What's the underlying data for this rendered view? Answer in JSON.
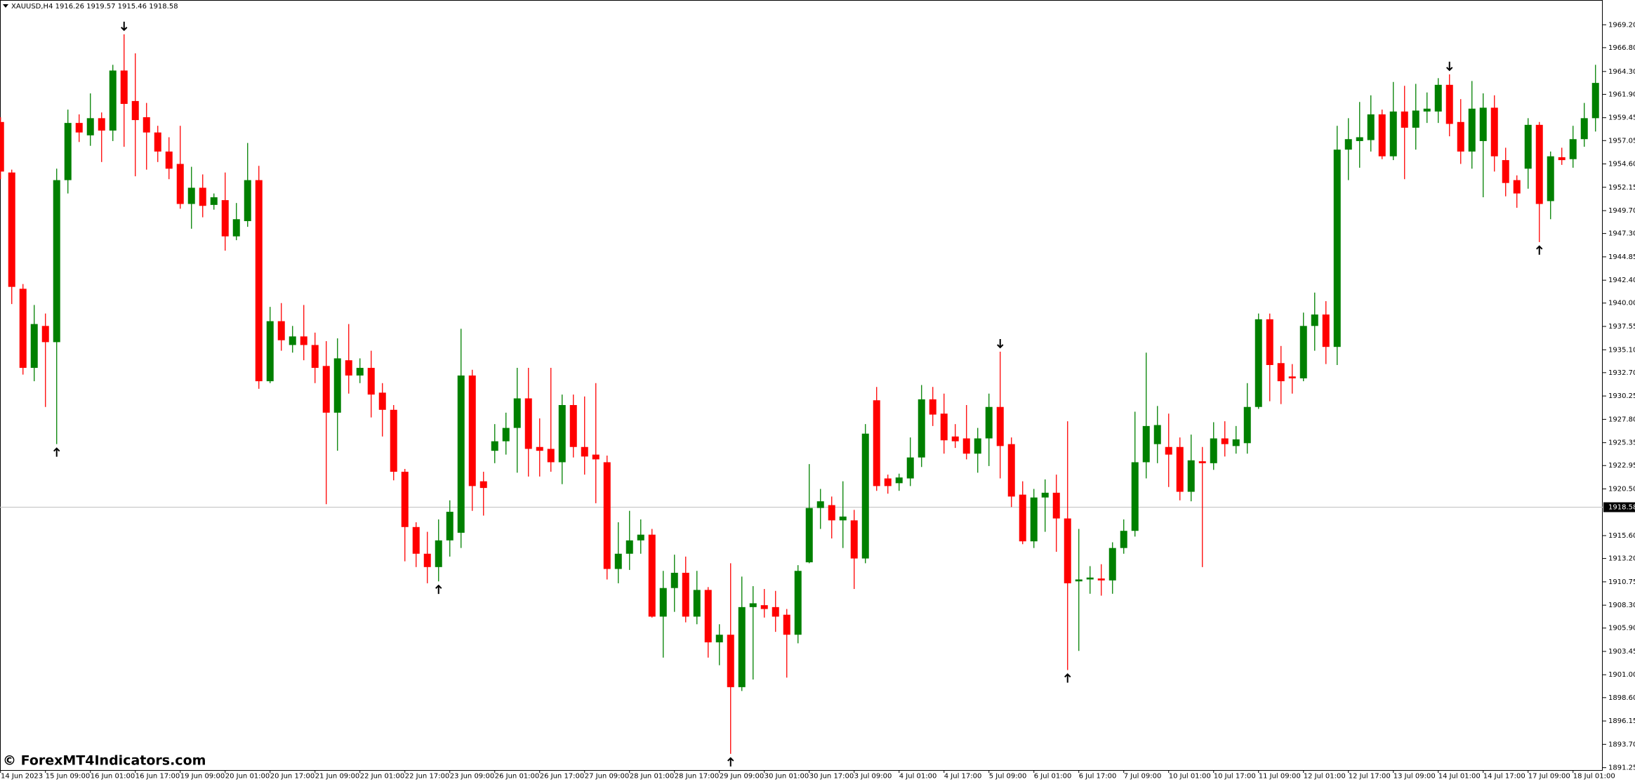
{
  "chart_data": {
    "type": "candlestick",
    "title": "XAUUSD,H4  1916.26 1919.57 1915.46 1918.58",
    "watermark": "© ForexMT4Indicators.com",
    "up_color": "#008000",
    "down_color": "#ff0000",
    "grid": false,
    "ylim": [
      1891.0,
      1971.8
    ],
    "yticks": [
      {
        "value": 1969.2,
        "label": "1969.20"
      },
      {
        "value": 1966.8,
        "label": "1966.80"
      },
      {
        "value": 1964.3,
        "label": "1964.30"
      },
      {
        "value": 1961.9,
        "label": "1961.90"
      },
      1959.45,
      1957.05,
      {
        "value": 1954.6,
        "label": "1954.60"
      },
      1952.15,
      {
        "value": 1949.7,
        "label": "1949.70"
      },
      {
        "value": 1947.3,
        "label": "1947.30"
      },
      1944.85,
      {
        "value": 1942.4,
        "label": "1942.40"
      },
      {
        "value": 1940,
        "label": "1940.00"
      },
      1937.55,
      {
        "value": 1935.1,
        "label": "1935.10"
      },
      {
        "value": 1932.7,
        "label": "1932.70"
      },
      1930.25,
      {
        "value": 1927.8,
        "label": "1927.80"
      },
      1925.35,
      1922.95,
      {
        "value": 1920.5,
        "label": "1920.50"
      },
      {
        "value": 1915.6,
        "label": "1915.60"
      },
      {
        "value": 1913.2,
        "label": "1913.20"
      },
      1910.75,
      {
        "value": 1908.3,
        "label": "1908.30"
      },
      {
        "value": 1905.9,
        "label": "1905.90"
      },
      1903.45,
      {
        "value": 1901,
        "label": "1901.00"
      },
      {
        "value": 1898.6,
        "label": "1898.60"
      },
      1896.15,
      {
        "value": 1893.7,
        "label": "1893.70"
      },
      1891.25
    ],
    "current_price": 1918.58,
    "time_labels": [
      "14 Jun 2023",
      "15 Jun 09:00",
      "16 Jun 01:00",
      "16 Jun 17:00",
      "19 Jun 09:00",
      "20 Jun 01:00",
      "20 Jun 17:00",
      "21 Jun 09:00",
      "22 Jun 01:00",
      "22 Jun 17:00",
      "23 Jun 09:00",
      "26 Jun 01:00",
      "26 Jun 17:00",
      "27 Jun 09:00",
      "28 Jun 01:00",
      "28 Jun 17:00",
      "29 Jun 09:00",
      "30 Jun 01:00",
      "30 Jun 17:00",
      "3 Jul 09:00",
      "4 Jul 01:00",
      "4 Jul 17:00",
      "5 Jul 09:00",
      "6 Jul 01:00",
      "6 Jul 17:00",
      "7 Jul 09:00",
      "10 Jul 01:00",
      "10 Jul 17:00",
      "11 Jul 09:00",
      "12 Jul 01:00",
      "12 Jul 17:00",
      "13 Jul 09:00",
      "14 Jul 01:00",
      "14 Jul 17:00",
      "17 Jul 09:00",
      "18 Jul 01:00"
    ],
    "signals": [
      {
        "bar": 5,
        "dir": "up"
      },
      {
        "bar": 11,
        "dir": "down"
      },
      {
        "bar": 39,
        "dir": "up"
      },
      {
        "bar": 65,
        "dir": "up"
      },
      {
        "bar": 89,
        "dir": "down"
      },
      {
        "bar": 95,
        "dir": "up"
      },
      {
        "bar": 129,
        "dir": "down"
      },
      {
        "bar": 137,
        "dir": "up"
      }
    ],
    "candles": [
      {
        "open": 1959,
        "high": 1959.5,
        "low": 1953,
        "close": 1953.8
      },
      {
        "open": 1953.7,
        "high": 1954,
        "low": 1939.9,
        "close": 1941.7
      },
      {
        "open": 1941.5,
        "high": 1942,
        "low": 1932.5,
        "close": 1933.2
      },
      {
        "open": 1933.2,
        "high": 1939.8,
        "low": 1931.8,
        "close": 1937.8
      },
      {
        "open": 1937.6,
        "high": 1938.9,
        "low": 1929.1,
        "close": 1935.9
      },
      {
        "open": 1935.9,
        "high": 1954.1,
        "low": 1925.2,
        "close": 1952.9
      },
      {
        "open": 1952.9,
        "high": 1960.3,
        "low": 1951.5,
        "close": 1958.9
      },
      {
        "open": 1958.9,
        "high": 1959.8,
        "low": 1956.9,
        "close": 1957.9
      },
      {
        "open": 1957.6,
        "high": 1962,
        "low": 1956.5,
        "close": 1959.4
      },
      {
        "open": 1959.4,
        "high": 1960,
        "low": 1954.8,
        "close": 1958.1
      },
      {
        "open": 1958.1,
        "high": 1965,
        "low": 1957,
        "close": 1964.4
      },
      {
        "open": 1964.4,
        "high": 1968.2,
        "low": 1956.4,
        "close": 1960.9
      },
      {
        "open": 1961.2,
        "high": 1966.2,
        "low": 1953.3,
        "close": 1959.2
      },
      {
        "open": 1959.5,
        "high": 1961,
        "low": 1954,
        "close": 1957.9
      },
      {
        "open": 1957.9,
        "high": 1958.6,
        "low": 1954.8,
        "close": 1955.9
      },
      {
        "open": 1955.9,
        "high": 1957.4,
        "low": 1953,
        "close": 1954.1
      },
      {
        "open": 1954.6,
        "high": 1958.6,
        "low": 1949.9,
        "close": 1950.4
      },
      {
        "open": 1950.4,
        "high": 1954.3,
        "low": 1947.8,
        "close": 1952.1
      },
      {
        "open": 1952.1,
        "high": 1953.5,
        "low": 1949,
        "close": 1950.2
      },
      {
        "open": 1950.3,
        "high": 1951.5,
        "low": 1949.8,
        "close": 1951.1
      },
      {
        "open": 1950.8,
        "high": 1953.7,
        "low": 1945.5,
        "close": 1947
      },
      {
        "open": 1947,
        "high": 1950.5,
        "low": 1946.6,
        "close": 1948.8
      },
      {
        "open": 1948.6,
        "high": 1956.8,
        "low": 1948,
        "close": 1952.9
      },
      {
        "open": 1952.9,
        "high": 1954.4,
        "low": 1931,
        "close": 1931.8
      },
      {
        "open": 1931.8,
        "high": 1939.6,
        "low": 1931.6,
        "close": 1938.1
      },
      {
        "open": 1938.1,
        "high": 1940,
        "low": 1935,
        "close": 1936.1
      },
      {
        "open": 1935.6,
        "high": 1937.6,
        "low": 1934.8,
        "close": 1936.5
      },
      {
        "open": 1936.5,
        "high": 1939.8,
        "low": 1934,
        "close": 1935.6
      },
      {
        "open": 1935.6,
        "high": 1936.9,
        "low": 1931.6,
        "close": 1933.2
      },
      {
        "open": 1933.4,
        "high": 1936,
        "low": 1918.9,
        "close": 1928.5
      },
      {
        "open": 1928.5,
        "high": 1936.3,
        "low": 1924.5,
        "close": 1934.2
      },
      {
        "open": 1934,
        "high": 1937.8,
        "low": 1930.5,
        "close": 1932.4
      },
      {
        "open": 1932.4,
        "high": 1934.2,
        "low": 1931.6,
        "close": 1933.2
      },
      {
        "open": 1933.2,
        "high": 1935,
        "low": 1928,
        "close": 1930.4
      },
      {
        "open": 1930.6,
        "high": 1931.6,
        "low": 1926,
        "close": 1928.8
      },
      {
        "open": 1928.8,
        "high": 1929.3,
        "low": 1921.4,
        "close": 1922.3
      },
      {
        "open": 1922.3,
        "high": 1922.6,
        "low": 1912.9,
        "close": 1916.5
      },
      {
        "open": 1916.5,
        "high": 1917,
        "low": 1912.3,
        "close": 1913.7
      },
      {
        "open": 1913.7,
        "high": 1916,
        "low": 1910.6,
        "close": 1912.3
      },
      {
        "open": 1912.3,
        "high": 1917.3,
        "low": 1910.8,
        "close": 1915.1
      },
      {
        "open": 1915.1,
        "high": 1919.3,
        "low": 1913.4,
        "close": 1918.1
      },
      {
        "open": 1915.9,
        "high": 1937.3,
        "low": 1914.3,
        "close": 1932.4
      },
      {
        "open": 1932.4,
        "high": 1933,
        "low": 1918.2,
        "close": 1920.8
      },
      {
        "open": 1921.3,
        "high": 1922.3,
        "low": 1917.7,
        "close": 1920.6
      },
      {
        "open": 1924.5,
        "high": 1927.3,
        "low": 1923.2,
        "close": 1925.5
      },
      {
        "open": 1925.5,
        "high": 1928.5,
        "low": 1924.1,
        "close": 1926.9
      },
      {
        "open": 1926.9,
        "high": 1933.2,
        "low": 1922.2,
        "close": 1930
      },
      {
        "open": 1930,
        "high": 1933.2,
        "low": 1921.8,
        "close": 1924.7
      },
      {
        "open": 1924.9,
        "high": 1927.9,
        "low": 1921.8,
        "close": 1924.5
      },
      {
        "open": 1924.7,
        "high": 1933.2,
        "low": 1922.3,
        "close": 1923.3
      },
      {
        "open": 1923.3,
        "high": 1930.4,
        "low": 1921,
        "close": 1929.3
      },
      {
        "open": 1929.3,
        "high": 1930.4,
        "low": 1923.8,
        "close": 1924.9
      },
      {
        "open": 1924.9,
        "high": 1930.2,
        "low": 1922,
        "close": 1923.9
      },
      {
        "open": 1924.1,
        "high": 1931.6,
        "low": 1919,
        "close": 1923.6
      },
      {
        "open": 1923.3,
        "high": 1924,
        "low": 1911,
        "close": 1912.1
      },
      {
        "open": 1912.1,
        "high": 1917,
        "low": 1910.6,
        "close": 1913.7
      },
      {
        "open": 1913.7,
        "high": 1918.2,
        "low": 1912,
        "close": 1915.1
      },
      {
        "open": 1915.1,
        "high": 1917.3,
        "low": 1913.7,
        "close": 1915.7
      },
      {
        "open": 1915.7,
        "high": 1916.3,
        "low": 1907,
        "close": 1907.1
      },
      {
        "open": 1907.1,
        "high": 1911.9,
        "low": 1902.8,
        "close": 1910.1
      },
      {
        "open": 1910.1,
        "high": 1913.6,
        "low": 1907.6,
        "close": 1911.7
      },
      {
        "open": 1911.7,
        "high": 1913.4,
        "low": 1906.5,
        "close": 1907.1
      },
      {
        "open": 1907.1,
        "high": 1911.9,
        "low": 1906.3,
        "close": 1909.9
      },
      {
        "open": 1909.9,
        "high": 1910.2,
        "low": 1902.8,
        "close": 1904.4
      },
      {
        "open": 1904.4,
        "high": 1906.3,
        "low": 1902,
        "close": 1905.2
      },
      {
        "open": 1905.2,
        "high": 1912.7,
        "low": 1892.7,
        "close": 1899.7
      },
      {
        "open": 1899.7,
        "high": 1911.3,
        "low": 1899.3,
        "close": 1908.1
      },
      {
        "open": 1908.1,
        "high": 1910.3,
        "low": 1900.5,
        "close": 1908.5
      },
      {
        "open": 1908.3,
        "high": 1910,
        "low": 1907,
        "close": 1907.9
      },
      {
        "open": 1908.1,
        "high": 1909.8,
        "low": 1905.5,
        "close": 1907.1
      },
      {
        "open": 1907.3,
        "high": 1907.9,
        "low": 1900.7,
        "close": 1905.2
      },
      {
        "open": 1905.2,
        "high": 1912.5,
        "low": 1904.3,
        "close": 1911.9
      },
      {
        "open": 1912.8,
        "high": 1923.1,
        "low": 1912.7,
        "close": 1918.5
      },
      {
        "open": 1918.5,
        "high": 1920.5,
        "low": 1916.3,
        "close": 1919.2
      },
      {
        "open": 1918.8,
        "high": 1919.7,
        "low": 1915.3,
        "close": 1917.2
      },
      {
        "open": 1917.2,
        "high": 1921.3,
        "low": 1914.3,
        "close": 1917.6
      },
      {
        "open": 1917.2,
        "high": 1918.3,
        "low": 1910,
        "close": 1913.2
      },
      {
        "open": 1913.2,
        "high": 1927.3,
        "low": 1912.7,
        "close": 1926.3
      },
      {
        "open": 1929.8,
        "high": 1931.2,
        "low": 1920.3,
        "close": 1920.8
      },
      {
        "open": 1921.6,
        "high": 1922,
        "low": 1920,
        "close": 1920.8
      },
      {
        "open": 1921.1,
        "high": 1922.1,
        "low": 1920.3,
        "close": 1921.7
      },
      {
        "open": 1921.6,
        "high": 1925.9,
        "low": 1920.8,
        "close": 1923.8
      },
      {
        "open": 1923.8,
        "high": 1931.4,
        "low": 1922.8,
        "close": 1929.9
      },
      {
        "open": 1929.9,
        "high": 1931.2,
        "low": 1927.1,
        "close": 1928.3
      },
      {
        "open": 1928.4,
        "high": 1930.5,
        "low": 1924.2,
        "close": 1925.6
      },
      {
        "open": 1926,
        "high": 1927.3,
        "low": 1924.8,
        "close": 1925.5
      },
      {
        "open": 1925.8,
        "high": 1929.3,
        "low": 1923.6,
        "close": 1924.2
      },
      {
        "open": 1924.2,
        "high": 1926.9,
        "low": 1922.2,
        "close": 1925.8
      },
      {
        "open": 1925.8,
        "high": 1930.5,
        "low": 1922.9,
        "close": 1929.1
      },
      {
        "open": 1929.1,
        "high": 1934.9,
        "low": 1921.6,
        "close": 1925
      },
      {
        "open": 1925.2,
        "high": 1925.9,
        "low": 1918.6,
        "close": 1919.7
      },
      {
        "open": 1919.9,
        "high": 1921.3,
        "low": 1914.7,
        "close": 1915
      },
      {
        "open": 1915,
        "high": 1920.5,
        "low": 1914.3,
        "close": 1919.6
      },
      {
        "open": 1919.6,
        "high": 1921.5,
        "low": 1916,
        "close": 1920.1
      },
      {
        "open": 1920.1,
        "high": 1922,
        "low": 1913.9,
        "close": 1917.4
      },
      {
        "open": 1917.4,
        "high": 1927.6,
        "low": 1901.5,
        "close": 1910.6
      },
      {
        "open": 1910.8,
        "high": 1916.3,
        "low": 1903.5,
        "close": 1911
      },
      {
        "open": 1911,
        "high": 1912.4,
        "low": 1909.5,
        "close": 1911.2
      },
      {
        "open": 1911.1,
        "high": 1912.6,
        "low": 1909.3,
        "close": 1910.9
      },
      {
        "open": 1910.9,
        "high": 1914.9,
        "low": 1909.5,
        "close": 1914.3
      },
      {
        "open": 1914.3,
        "high": 1917.3,
        "low": 1913.7,
        "close": 1916.1
      },
      {
        "open": 1916.1,
        "high": 1928.6,
        "low": 1915.5,
        "close": 1923.3
      },
      {
        "open": 1923.3,
        "high": 1934.8,
        "low": 1921.6,
        "close": 1927.1
      },
      {
        "open": 1925.2,
        "high": 1929.2,
        "low": 1923.2,
        "close": 1927.2
      },
      {
        "open": 1924.9,
        "high": 1928.4,
        "low": 1920.7,
        "close": 1924.1
      },
      {
        "open": 1924.9,
        "high": 1925.9,
        "low": 1919.3,
        "close": 1920.2
      },
      {
        "open": 1920.2,
        "high": 1926.2,
        "low": 1919.2,
        "close": 1923.5
      },
      {
        "open": 1923.4,
        "high": 1924.9,
        "low": 1912.3,
        "close": 1923.2
      },
      {
        "open": 1923.2,
        "high": 1927.5,
        "low": 1922.5,
        "close": 1925.8
      },
      {
        "open": 1925.8,
        "high": 1927.6,
        "low": 1923.9,
        "close": 1925.2
      },
      {
        "open": 1925,
        "high": 1927.1,
        "low": 1924.2,
        "close": 1925.7
      },
      {
        "open": 1925.3,
        "high": 1931.6,
        "low": 1924.2,
        "close": 1929.1
      },
      {
        "open": 1929.1,
        "high": 1938.9,
        "low": 1928.9,
        "close": 1938.3
      },
      {
        "open": 1938.3,
        "high": 1938.9,
        "low": 1929.7,
        "close": 1933.5
      },
      {
        "open": 1933.7,
        "high": 1935.5,
        "low": 1929.4,
        "close": 1931.8
      },
      {
        "open": 1932.3,
        "high": 1933.6,
        "low": 1930.5,
        "close": 1932.1
      },
      {
        "open": 1932.1,
        "high": 1939,
        "low": 1931.8,
        "close": 1937.6
      },
      {
        "open": 1937.6,
        "high": 1941.1,
        "low": 1935,
        "close": 1938.8
      },
      {
        "open": 1938.8,
        "high": 1940.2,
        "low": 1933.6,
        "close": 1935.4
      },
      {
        "open": 1935.4,
        "high": 1958.6,
        "low": 1933.5,
        "close": 1956.1
      },
      {
        "open": 1956.1,
        "high": 1959.4,
        "low": 1952.9,
        "close": 1957.2
      },
      {
        "open": 1957,
        "high": 1961.1,
        "low": 1954.2,
        "close": 1957.4
      },
      {
        "open": 1957.1,
        "high": 1961.8,
        "low": 1955.9,
        "close": 1959.8
      },
      {
        "open": 1959.8,
        "high": 1960.3,
        "low": 1955.1,
        "close": 1955.4
      },
      {
        "open": 1955.4,
        "high": 1963.2,
        "low": 1955,
        "close": 1960.1
      },
      {
        "open": 1960.1,
        "high": 1962.8,
        "low": 1953,
        "close": 1958.4
      },
      {
        "open": 1958.4,
        "high": 1963,
        "low": 1956.1,
        "close": 1960.2
      },
      {
        "open": 1960.1,
        "high": 1962.1,
        "low": 1958.9,
        "close": 1960.4
      },
      {
        "open": 1960.1,
        "high": 1963.6,
        "low": 1958.9,
        "close": 1962.9
      },
      {
        "open": 1962.9,
        "high": 1964,
        "low": 1957.5,
        "close": 1958.8
      },
      {
        "open": 1959,
        "high": 1961.4,
        "low": 1954.6,
        "close": 1955.9
      },
      {
        "open": 1955.9,
        "high": 1963.3,
        "low": 1954.1,
        "close": 1960.4
      },
      {
        "open": 1957,
        "high": 1962,
        "low": 1951.1,
        "close": 1960.5
      },
      {
        "open": 1960.5,
        "high": 1961.8,
        "low": 1953.8,
        "close": 1955.4
      },
      {
        "open": 1955,
        "high": 1956.3,
        "low": 1951.2,
        "close": 1952.6
      },
      {
        "open": 1952.9,
        "high": 1953.4,
        "low": 1950,
        "close": 1951.5
      },
      {
        "open": 1954.1,
        "high": 1959.4,
        "low": 1952,
        "close": 1958.7
      },
      {
        "open": 1958.7,
        "high": 1959,
        "low": 1946.4,
        "close": 1950.4
      },
      {
        "open": 1950.7,
        "high": 1955.9,
        "low": 1948.8,
        "close": 1955.4
      },
      {
        "open": 1955.3,
        "high": 1956.3,
        "low": 1954.5,
        "close": 1955
      },
      {
        "open": 1955.1,
        "high": 1958.6,
        "low": 1954.2,
        "close": 1957.2
      },
      {
        "open": 1957.2,
        "high": 1961,
        "low": 1956.4,
        "close": 1959.4
      },
      {
        "open": 1959.4,
        "high": 1965,
        "low": 1958,
        "close": 1963.1
      }
    ]
  }
}
